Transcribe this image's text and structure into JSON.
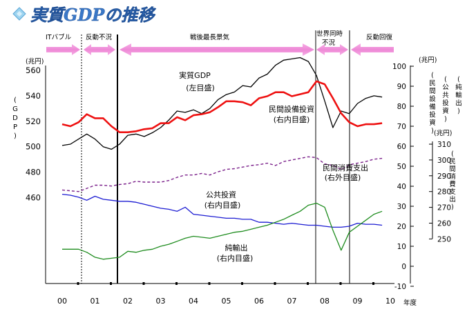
{
  "chart_data": {
    "type": "line",
    "title": "実質GDPの推移",
    "x_tick_labels": [
      "00",
      "01",
      "02",
      "03",
      "04",
      "05",
      "06",
      "07",
      "08",
      "09",
      "10"
    ],
    "x_unit": "年度",
    "left_axis": {
      "unit": "(兆円)",
      "label": "GDP",
      "ticks": [
        460,
        480,
        500,
        520,
        540,
        560
      ]
    },
    "right_inner_axis": {
      "unit": "(兆円)",
      "labels": [
        "民間設備投資",
        "公共投資",
        "純輸出"
      ],
      "ticks": [
        -10,
        0,
        10,
        20,
        30,
        40,
        50,
        60,
        70,
        80,
        90,
        100
      ]
    },
    "right_outer_axis": {
      "unit": "(兆円)",
      "label": "民間消費支出",
      "ticks": [
        250,
        260,
        270,
        280,
        290,
        300,
        310
      ]
    },
    "periods": [
      {
        "label": "ITバブル"
      },
      {
        "label": "反動不況"
      },
      {
        "label": "戦後最長景気"
      },
      {
        "label_line1": "世界同時",
        "label_line2": "不況"
      },
      {
        "label": "反動回復"
      }
    ],
    "series": [
      {
        "name": "実質GDP",
        "annotation_lines": [
          "実質GDP",
          "(左目盛)"
        ],
        "axis": "left",
        "color": "#000000",
        "x": [
          0.0,
          0.25,
          0.5,
          0.75,
          1.0,
          1.25,
          1.5,
          1.75,
          2.0,
          2.25,
          2.5,
          2.75,
          3.0,
          3.25,
          3.5,
          3.75,
          4.0,
          4.25,
          4.5,
          4.75,
          5.0,
          5.25,
          5.5,
          5.75,
          6.0,
          6.25,
          6.5,
          6.75,
          7.0,
          7.25,
          7.5,
          7.75,
          8.0,
          8.25,
          8.5,
          8.75,
          9.0,
          9.25,
          9.5,
          9.75
        ],
        "values": [
          501,
          502,
          506,
          510,
          506,
          500,
          498,
          502,
          509,
          510,
          508,
          511,
          515,
          521,
          528,
          527,
          529,
          526,
          530,
          537,
          541,
          543,
          548,
          547,
          554,
          557,
          564,
          568,
          569,
          570,
          567,
          556,
          536,
          515,
          528,
          526,
          534,
          538,
          540,
          539
        ]
      },
      {
        "name": "民間設備投資",
        "annotation_lines": [
          "民間設備投資",
          "(右内目盛)"
        ],
        "axis": "right_inner",
        "color": "#ee1111",
        "x": [
          0.0,
          0.25,
          0.5,
          0.75,
          1.0,
          1.25,
          1.5,
          1.75,
          2.0,
          2.25,
          2.5,
          2.75,
          3.0,
          3.25,
          3.5,
          3.75,
          4.0,
          4.25,
          4.5,
          4.75,
          5.0,
          5.25,
          5.5,
          5.75,
          6.0,
          6.25,
          6.5,
          6.75,
          7.0,
          7.25,
          7.5,
          7.75,
          8.0,
          8.25,
          8.5,
          8.75,
          9.0,
          9.25,
          9.5,
          9.75
        ],
        "values": [
          71,
          70,
          72,
          76,
          74,
          74,
          70,
          67,
          67,
          67.5,
          68.5,
          69,
          71.5,
          71.5,
          74.5,
          73,
          75.5,
          76,
          77,
          79.5,
          82.5,
          82.5,
          82,
          80.5,
          84,
          85,
          87,
          87,
          85,
          86,
          87,
          92.5,
          91,
          84,
          76.5,
          72,
          70,
          71,
          71,
          71.5
        ]
      },
      {
        "name": "民間消費支出",
        "annotation_lines": [
          "民間消費支出",
          "(右外目盛)"
        ],
        "axis": "right_outer",
        "color": "#7a1f8a",
        "x": [
          0.0,
          0.25,
          0.5,
          0.75,
          1.0,
          1.25,
          1.5,
          1.75,
          2.0,
          2.25,
          2.5,
          2.75,
          3.0,
          3.25,
          3.5,
          3.75,
          4.0,
          4.25,
          4.5,
          4.75,
          5.0,
          5.25,
          5.5,
          5.75,
          6.0,
          6.25,
          6.5,
          6.75,
          7.0,
          7.25,
          7.5,
          7.75,
          8.0,
          8.25,
          8.5,
          8.75,
          9.0,
          9.25,
          9.5,
          9.75
        ],
        "values": [
          281,
          280.5,
          280,
          282,
          284,
          284,
          283.5,
          284.5,
          285,
          286.5,
          286,
          286,
          286,
          287,
          289,
          290.5,
          290.5,
          291.5,
          290.5,
          292.5,
          294,
          294.5,
          295.5,
          296.5,
          297,
          298,
          296.5,
          299,
          300,
          301,
          302,
          301.5,
          297.5,
          296.5,
          294,
          297,
          298,
          299,
          300.5,
          301
        ]
      },
      {
        "name": "公共投資",
        "annotation_lines": [
          "公共投資",
          "(右内目盛)"
        ],
        "axis": "right_inner",
        "color": "#1a1ad2",
        "x": [
          0.0,
          0.25,
          0.5,
          0.75,
          1.0,
          1.25,
          1.5,
          1.75,
          2.0,
          2.25,
          2.5,
          2.75,
          3.0,
          3.25,
          3.5,
          3.75,
          4.0,
          4.25,
          4.5,
          4.75,
          5.0,
          5.25,
          5.5,
          5.75,
          6.0,
          6.25,
          6.5,
          6.75,
          7.0,
          7.25,
          7.5,
          7.75,
          8.0,
          8.25,
          8.5,
          8.75,
          9.0,
          9.25,
          9.5,
          9.75
        ],
        "values": [
          36,
          35.5,
          34.5,
          33,
          35,
          33.5,
          33,
          32.5,
          32.5,
          32,
          31,
          30,
          29,
          28.5,
          27.5,
          29.5,
          26,
          25.5,
          25,
          24.5,
          24,
          24,
          23.5,
          23.5,
          22,
          22,
          21.5,
          21,
          21.5,
          21,
          20.5,
          20.5,
          20,
          19.5,
          19.5,
          20,
          21.5,
          21,
          21,
          20.5
        ]
      },
      {
        "name": "純輸出",
        "annotation_lines": [
          "純輸出",
          "(右内目盛)"
        ],
        "axis": "right_inner",
        "color": "#1e8c1e",
        "x": [
          0.0,
          0.25,
          0.5,
          0.75,
          1.0,
          1.25,
          1.5,
          1.75,
          2.0,
          2.25,
          2.5,
          2.75,
          3.0,
          3.25,
          3.5,
          3.75,
          4.0,
          4.25,
          4.5,
          4.75,
          5.0,
          5.25,
          5.5,
          5.75,
          6.0,
          6.25,
          6.5,
          6.75,
          7.0,
          7.25,
          7.5,
          7.75,
          8.0,
          8.25,
          8.5,
          8.75,
          9.0,
          9.25,
          9.5,
          9.75
        ],
        "values": [
          8.5,
          8.5,
          8.5,
          7,
          4.5,
          3.5,
          4,
          4.5,
          7.5,
          7,
          8,
          8.5,
          10,
          11,
          12.5,
          14,
          15,
          14.5,
          14,
          15,
          16,
          17,
          17.5,
          18.5,
          19.5,
          20.5,
          22,
          23.5,
          25.5,
          27.5,
          30.5,
          31.5,
          29.5,
          18,
          8,
          17,
          20,
          23,
          26,
          27.5
        ]
      }
    ]
  }
}
